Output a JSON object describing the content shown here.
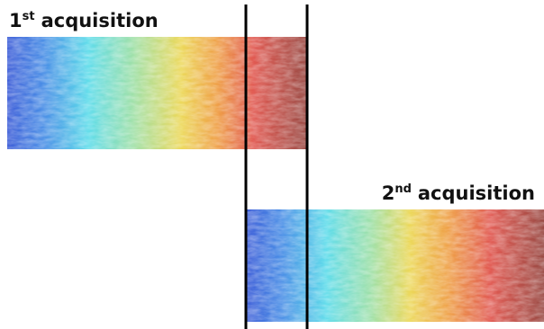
{
  "panels": [
    {
      "label": {
        "number": "1",
        "suffix": "st",
        "text": "acquisition"
      }
    },
    {
      "label": {
        "number": "2",
        "suffix": "nd",
        "text": "acquisition"
      }
    }
  ]
}
